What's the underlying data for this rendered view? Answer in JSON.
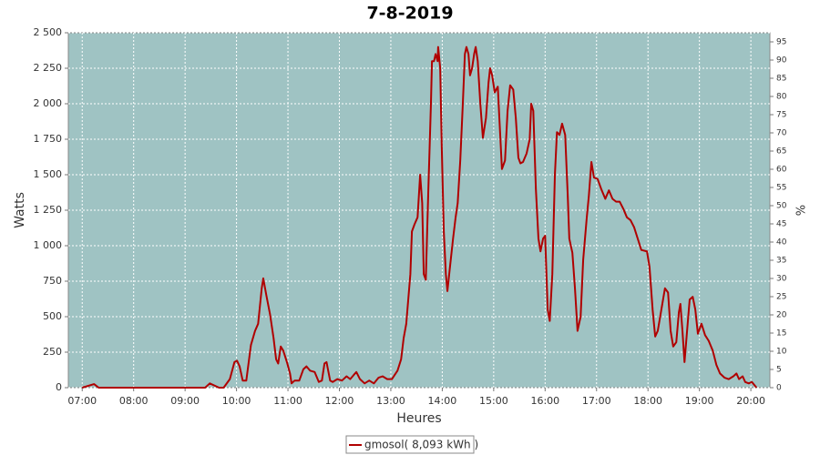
{
  "chart_data": {
    "type": "line",
    "title": "7-8-2019",
    "x_label": "Heures",
    "y_label": "Watts",
    "y2_label": "%",
    "x": [
      7.0,
      7.23,
      7.32,
      9.39,
      9.48,
      9.66,
      9.75,
      9.87,
      9.96,
      10.01,
      10.06,
      10.12,
      10.19,
      10.28,
      10.36,
      10.42,
      10.49,
      10.52,
      10.58,
      10.65,
      10.72,
      10.77,
      10.81,
      10.86,
      10.91,
      10.98,
      11.04,
      11.07,
      11.13,
      11.22,
      11.3,
      11.36,
      11.43,
      11.52,
      11.6,
      11.66,
      11.71,
      11.75,
      11.82,
      11.87,
      11.96,
      12.05,
      12.14,
      12.21,
      12.28,
      12.33,
      12.4,
      12.49,
      12.58,
      12.67,
      12.76,
      12.84,
      12.93,
      13.02,
      13.13,
      13.2,
      13.25,
      13.3,
      13.38,
      13.41,
      13.46,
      13.52,
      13.57,
      13.61,
      13.64,
      13.68,
      13.73,
      13.78,
      13.8,
      13.84,
      13.87,
      13.91,
      13.92,
      13.96,
      13.99,
      14.03,
      14.07,
      14.1,
      14.15,
      14.21,
      14.26,
      14.3,
      14.35,
      14.4,
      14.44,
      14.47,
      14.51,
      14.54,
      14.58,
      14.62,
      14.65,
      14.69,
      14.74,
      14.79,
      14.85,
      14.9,
      14.93,
      14.97,
      15.02,
      15.08,
      15.11,
      15.16,
      15.22,
      15.27,
      15.32,
      15.38,
      15.43,
      15.48,
      15.52,
      15.57,
      15.64,
      15.7,
      15.73,
      15.77,
      15.82,
      15.87,
      15.91,
      15.96,
      16.0,
      16.05,
      16.09,
      16.14,
      16.19,
      16.23,
      16.28,
      16.33,
      16.39,
      16.44,
      16.47,
      16.53,
      16.58,
      16.63,
      16.69,
      16.74,
      16.81,
      16.85,
      16.9,
      16.95,
      17.02,
      17.09,
      17.17,
      17.24,
      17.31,
      17.38,
      17.45,
      17.52,
      17.59,
      17.66,
      17.73,
      17.8,
      17.87,
      17.98,
      18.03,
      18.09,
      18.14,
      18.19,
      18.26,
      18.33,
      18.39,
      18.44,
      18.49,
      18.55,
      18.6,
      18.63,
      18.67,
      18.71,
      18.76,
      18.81,
      18.87,
      18.92,
      18.97,
      19.04,
      19.11,
      19.18,
      19.26,
      19.33,
      19.4,
      19.49,
      19.57,
      19.66,
      19.72,
      19.77,
      19.84,
      19.89,
      19.96,
      20.02,
      20.11
    ],
    "series": [
      {
        "name": "gmosol( 8,093 kWh )",
        "color": "#b00000",
        "values": [
          0,
          25,
          0,
          0,
          30,
          0,
          0,
          60,
          180,
          190,
          150,
          50,
          50,
          300,
          400,
          450,
          700,
          770,
          650,
          520,
          350,
          200,
          170,
          290,
          260,
          180,
          100,
          30,
          50,
          50,
          130,
          150,
          120,
          110,
          40,
          50,
          170,
          180,
          50,
          40,
          60,
          50,
          80,
          60,
          90,
          110,
          60,
          30,
          50,
          30,
          70,
          80,
          60,
          60,
          120,
          200,
          350,
          450,
          800,
          1100,
          1150,
          1200,
          1500,
          1300,
          800,
          760,
          1400,
          2000,
          2300,
          2300,
          2350,
          2300,
          2400,
          2250,
          1700,
          1100,
          800,
          680,
          850,
          1050,
          1200,
          1300,
          1600,
          2000,
          2350,
          2400,
          2350,
          2200,
          2250,
          2350,
          2400,
          2300,
          2000,
          1760,
          1900,
          2150,
          2250,
          2200,
          2080,
          2120,
          1900,
          1540,
          1600,
          1950,
          2130,
          2100,
          1900,
          1620,
          1580,
          1590,
          1650,
          1750,
          2000,
          1950,
          1400,
          1050,
          960,
          1050,
          1070,
          550,
          470,
          800,
          1500,
          1800,
          1780,
          1860,
          1780,
          1350,
          1050,
          950,
          700,
          400,
          500,
          900,
          1200,
          1350,
          1590,
          1480,
          1470,
          1400,
          1330,
          1390,
          1330,
          1310,
          1310,
          1260,
          1200,
          1180,
          1130,
          1050,
          970,
          960,
          850,
          550,
          360,
          400,
          550,
          700,
          670,
          400,
          290,
          320,
          530,
          590,
          400,
          180,
          400,
          620,
          640,
          550,
          380,
          450,
          370,
          330,
          260,
          160,
          100,
          70,
          60,
          80,
          100,
          60,
          80,
          40,
          30,
          40,
          0
        ]
      }
    ],
    "xlim": [
      6.73,
      20.37
    ],
    "xticks": [
      {
        "value": 7,
        "label": "07:00"
      },
      {
        "value": 8,
        "label": "08:00"
      },
      {
        "value": 9,
        "label": "09:00"
      },
      {
        "value": 10,
        "label": "10:00"
      },
      {
        "value": 11,
        "label": "11:00"
      },
      {
        "value": 12,
        "label": "12:00"
      },
      {
        "value": 13,
        "label": "13:00"
      },
      {
        "value": 14,
        "label": "14:00"
      },
      {
        "value": 15,
        "label": "15:00"
      },
      {
        "value": 16,
        "label": "16:00"
      },
      {
        "value": 17,
        "label": "17:00"
      },
      {
        "value": 18,
        "label": "18:00"
      },
      {
        "value": 19,
        "label": "19:00"
      },
      {
        "value": 20,
        "label": "20:00"
      }
    ],
    "ylim": [
      0,
      2500
    ],
    "yticks": [
      0,
      250,
      500,
      750,
      {
        "value": 1000,
        "label": "1 000"
      },
      {
        "value": 1250,
        "label": "1 250"
      },
      {
        "value": 1500,
        "label": "1 500"
      },
      {
        "value": 1750,
        "label": "1 750"
      },
      {
        "value": 2000,
        "label": "2 000"
      },
      {
        "value": 2250,
        "label": "2 250"
      },
      {
        "value": 2500,
        "label": "2 500"
      }
    ],
    "y2lim": [
      0,
      97.5
    ],
    "y2ticks": [
      0,
      5,
      10,
      15,
      20,
      25,
      30,
      35,
      40,
      45,
      50,
      55,
      60,
      65,
      70,
      75,
      80,
      85,
      90,
      95
    ],
    "grid": true,
    "legend": "bottom",
    "plot_background": "#9fc3c3"
  }
}
